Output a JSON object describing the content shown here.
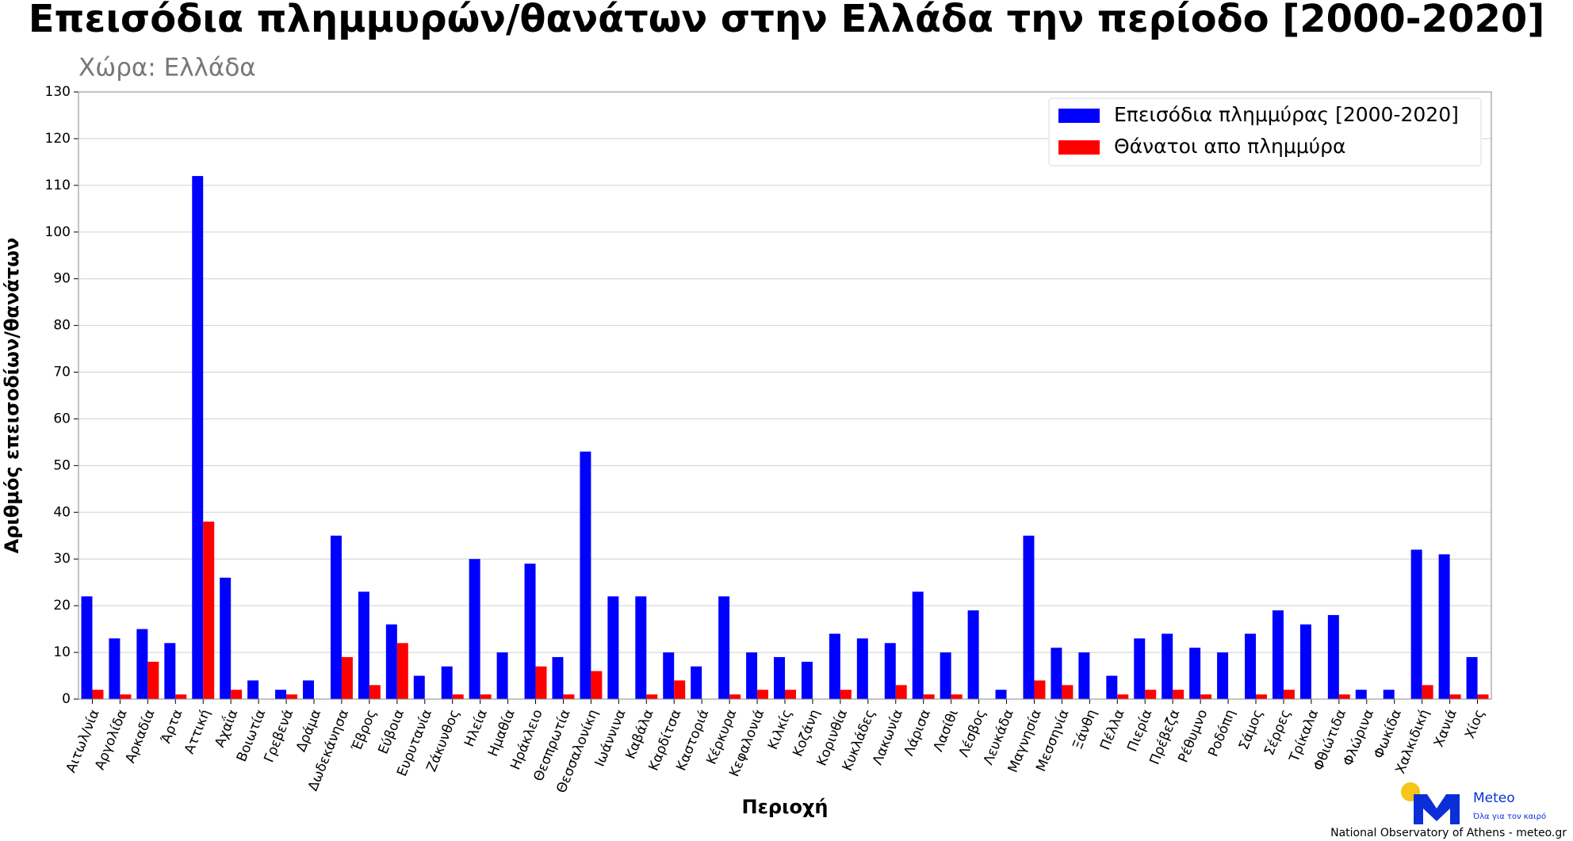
{
  "chart_data": {
    "type": "bar",
    "title": "Επεισόδια πλημμυρών/θανάτων στην Ελλάδα την περίοδο [2000-2020]",
    "subtitle": "Χώρα: Ελλάδα",
    "x_label": "Περιοχή",
    "y_label": "Αριθμός επεισοδίων/θανάτων",
    "categories": [
      "Αιτωλ/νία",
      "Αργολίδα",
      "Αρκαδία",
      "Άρτα",
      "Αττική",
      "Αχαΐα",
      "Βοιωτία",
      "Γρεβενά",
      "Δράμα",
      "Δωδεκάνησα",
      "Έβρος",
      "Εύβοια",
      "Ευρυτανία",
      "Ζάκυνθος",
      "Ηλεία",
      "Ημαθία",
      "Ηράκλειο",
      "Θεσπρωτία",
      "Θεσσαλονίκη",
      "Ιωάννινα",
      "Καβάλα",
      "Καρδίτσα",
      "Καστοριά",
      "Κέρκυρα",
      "Κεφαλονιά",
      "Κιλκίς",
      "Κοζάνη",
      "Κορινθία",
      "Κυκλάδες",
      "Λακωνία",
      "Λάρισα",
      "Λασίθι",
      "Λέσβος",
      "Λευκάδα",
      "Μαγνησία",
      "Μεσσηνία",
      "Ξάνθη",
      "Πέλλα",
      "Πιερία",
      "Πρέβεζα",
      "Ρέθυμνο",
      "Ροδόπη",
      "Σάμος",
      "Σέρρες",
      "Τρίκαλα",
      "Φθιώτιδα",
      "Φλώρινα",
      "Φωκίδα",
      "Χαλκιδική",
      "Χανιά",
      "Χίος"
    ],
    "series": [
      {
        "name": "Επεισόδια πλημμύρας [2000-2020]",
        "color": "#0000ff",
        "values": [
          22,
          13,
          15,
          12,
          112,
          26,
          4,
          2,
          4,
          35,
          23,
          16,
          5,
          7,
          30,
          10,
          29,
          9,
          53,
          22,
          22,
          10,
          7,
          22,
          10,
          9,
          8,
          14,
          13,
          12,
          23,
          10,
          19,
          2,
          35,
          11,
          10,
          5,
          13,
          14,
          11,
          10,
          14,
          19,
          16,
          18,
          2,
          2,
          32,
          31,
          9
        ]
      },
      {
        "name": "Θάνατοι απο πλημμύρα",
        "color": "#ff0000",
        "values": [
          2,
          1,
          8,
          1,
          38,
          2,
          0,
          1,
          0,
          9,
          3,
          12,
          0,
          1,
          1,
          0,
          7,
          1,
          6,
          0,
          1,
          4,
          0,
          1,
          2,
          2,
          0,
          2,
          0,
          3,
          1,
          1,
          0,
          0,
          4,
          3,
          0,
          1,
          2,
          2,
          1,
          0,
          1,
          2,
          0,
          1,
          0,
          0,
          3,
          1,
          1
        ]
      }
    ],
    "ylim": [
      0,
      130
    ],
    "yticks": [
      0,
      10,
      20,
      30,
      40,
      50,
      60,
      70,
      80,
      90,
      100,
      110,
      120,
      130
    ],
    "grid": true,
    "legend": "upper right"
  },
  "logo": {
    "name": "Meteo",
    "tagline": "Όλα για τον καιρό"
  },
  "footer": "National Observatory of Athens - meteo.gr"
}
